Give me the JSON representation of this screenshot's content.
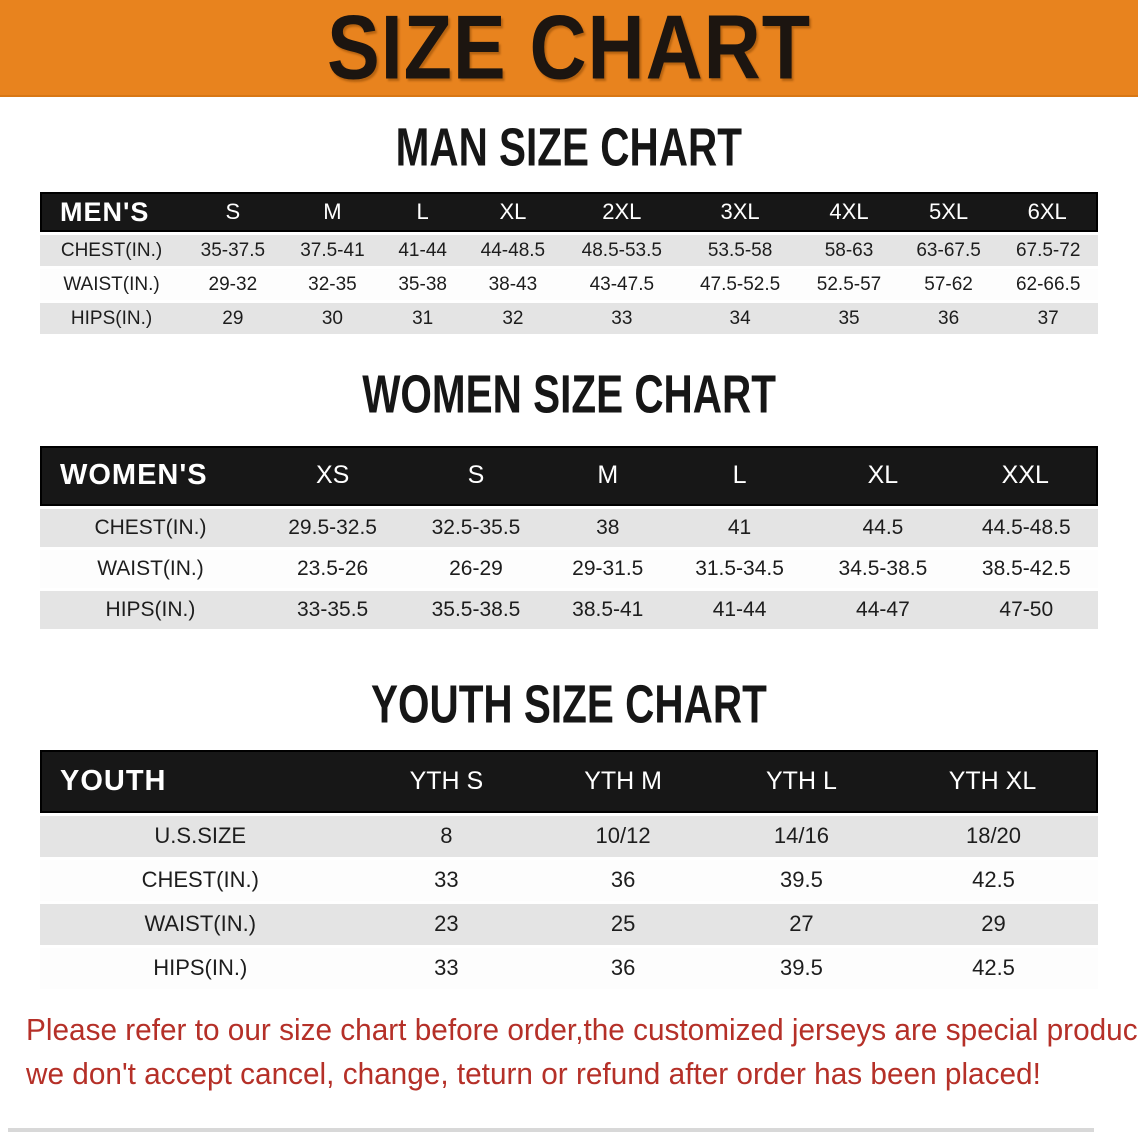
{
  "banner": {
    "title": "SIZE CHART"
  },
  "colors": {
    "accent_orange": "#e8831e",
    "header_bar_black": "#171717",
    "row_gray": "#e4e4e4",
    "disclaimer_red": "#b53028"
  },
  "sections": [
    {
      "heading": "MAN SIZE CHART",
      "header_label": "MEN'S",
      "columns": [
        "S",
        "M",
        "L",
        "XL",
        "2XL",
        "3XL",
        "4XL",
        "5XL",
        "6XL"
      ],
      "rows": [
        {
          "label": "CHEST(IN.)",
          "values": [
            "35-37.5",
            "37.5-41",
            "41-44",
            "44-48.5",
            "48.5-53.5",
            "53.5-58",
            "58-63",
            "63-67.5",
            "67.5-72"
          ]
        },
        {
          "label": "WAIST(IN.)",
          "values": [
            "29-32",
            "32-35",
            "35-38",
            "38-43",
            "43-47.5",
            "47.5-52.5",
            "52.5-57",
            "57-62",
            "62-66.5"
          ]
        },
        {
          "label": "HIPS(IN.)",
          "values": [
            "29",
            "30",
            "31",
            "32",
            "33",
            "34",
            "35",
            "36",
            "37"
          ]
        }
      ]
    },
    {
      "heading": "WOMEN SIZE CHART",
      "header_label": "WOMEN'S",
      "columns": [
        "XS",
        "S",
        "M",
        "L",
        "XL",
        "XXL"
      ],
      "rows": [
        {
          "label": "CHEST(IN.)",
          "values": [
            "29.5-32.5",
            "32.5-35.5",
            "38",
            "41",
            "44.5",
            "44.5-48.5"
          ]
        },
        {
          "label": "WAIST(IN.)",
          "values": [
            "23.5-26",
            "26-29",
            "29-31.5",
            "31.5-34.5",
            "34.5-38.5",
            "38.5-42.5"
          ]
        },
        {
          "label": "HIPS(IN.)",
          "values": [
            "33-35.5",
            "35.5-38.5",
            "38.5-41",
            "41-44",
            "44-47",
            "47-50"
          ]
        }
      ]
    },
    {
      "heading": "YOUTH SIZE CHART",
      "header_label": "YOUTH",
      "columns": [
        "YTH S",
        "YTH M",
        "YTH L",
        "YTH XL"
      ],
      "rows": [
        {
          "label": "U.S.SIZE",
          "values": [
            "8",
            "10/12",
            "14/16",
            "18/20"
          ]
        },
        {
          "label": "CHEST(IN.)",
          "values": [
            "33",
            "36",
            "39.5",
            "42.5"
          ]
        },
        {
          "label": "WAIST(IN.)",
          "values": [
            "23",
            "25",
            "27",
            "29"
          ]
        },
        {
          "label": "HIPS(IN.)",
          "values": [
            "33",
            "36",
            "39.5",
            "42.5"
          ]
        }
      ]
    }
  ],
  "disclaimer": {
    "line1": "Please refer to our size chart before order,the customized jerseys are special products,",
    "line2": "we don't accept cancel, change, teturn or refund after order has been placed!"
  }
}
